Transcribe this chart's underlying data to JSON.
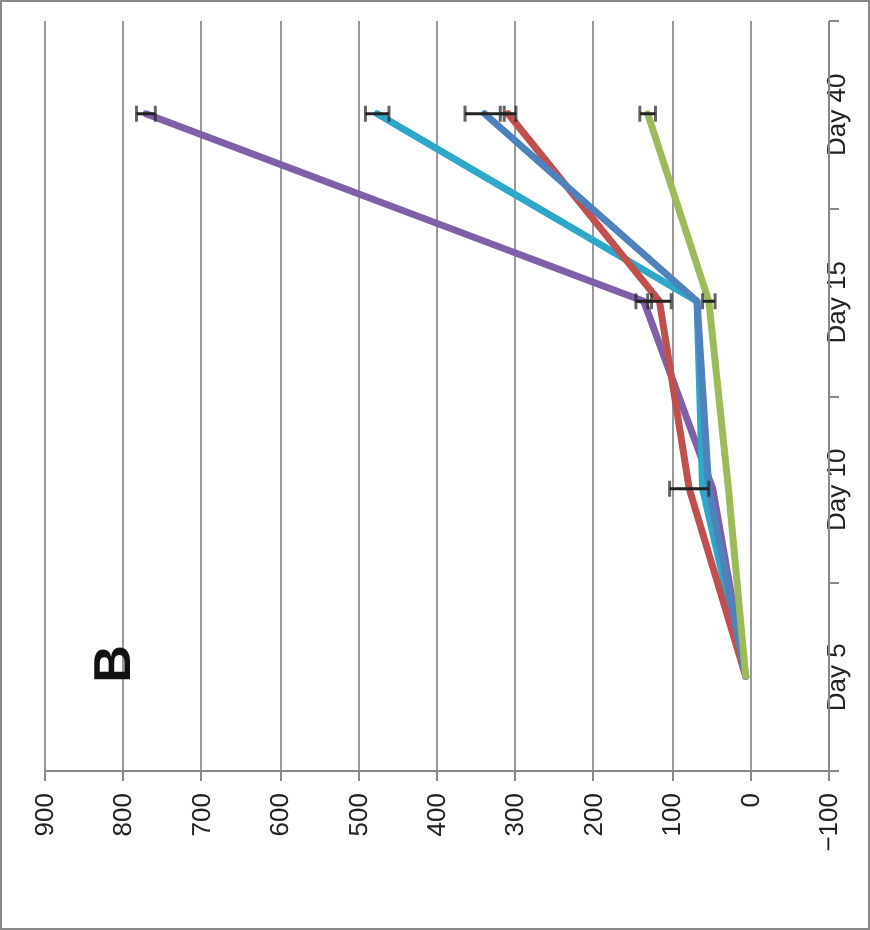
{
  "chart_data": {
    "type": "line",
    "orientation": "horizontal",
    "categories": [
      "Day 40",
      "Day 15",
      "Day 10",
      "Day 5"
    ],
    "series": [
      {
        "color": "#7f5fa8",
        "values": [
          770,
          135,
          47,
          5
        ],
        "errors": [
          12,
          10,
          null,
          null
        ]
      },
      {
        "color": "#2ea8c8",
        "values": [
          475,
          67,
          60,
          5
        ],
        "errors": [
          15,
          null,
          null,
          null
        ]
      },
      {
        "color": "#c0504d",
        "values": [
          308,
          115,
          77,
          5
        ],
        "errors": [
          10,
          15,
          25,
          null
        ]
      },
      {
        "color": "#4f81bd",
        "values": [
          338,
          67,
          52,
          5
        ],
        "errors": [
          25,
          null,
          null,
          null
        ]
      },
      {
        "color": "#9bbb59",
        "values": [
          130,
          52,
          27,
          5
        ],
        "errors": [
          10,
          8,
          null,
          null
        ]
      }
    ],
    "xlim": [
      900,
      -100
    ],
    "xticks": [
      -100,
      0,
      100,
      200,
      300,
      400,
      500,
      600,
      700,
      800,
      900
    ],
    "grid": "x",
    "marker": "none",
    "line_style": "solid",
    "annotations": [
      "B"
    ]
  }
}
